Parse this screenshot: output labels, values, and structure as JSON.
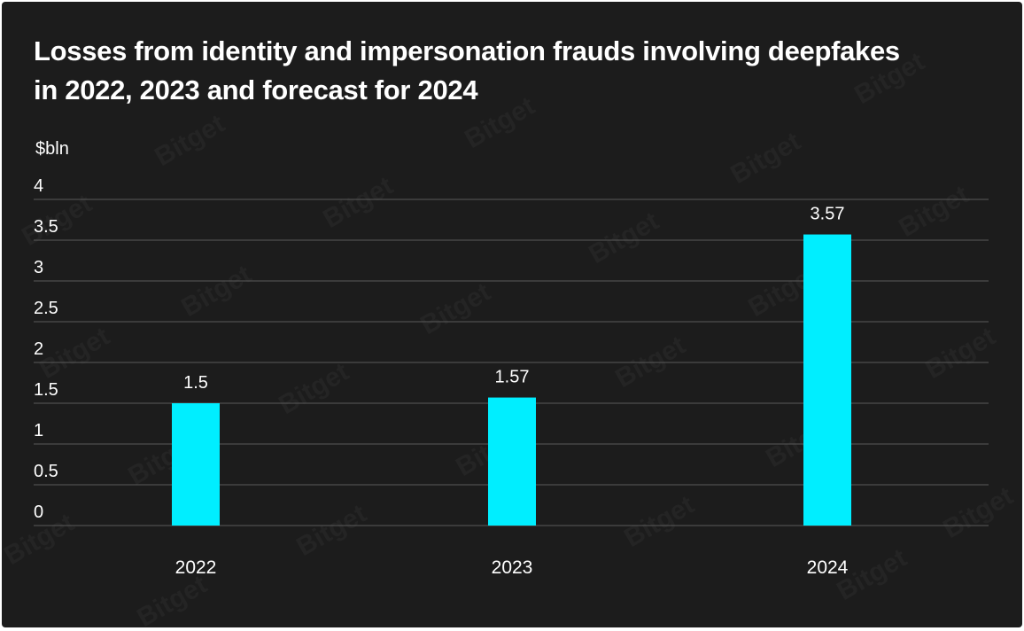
{
  "watermark_text": "Bitget",
  "chart_data": {
    "type": "bar",
    "title": "Losses from identity and impersonation frauds involving deepfakes in 2022, 2023 and forecast for 2024",
    "ylabel": "$bln",
    "xlabel": "",
    "categories": [
      "2022",
      "2023",
      "2024"
    ],
    "values": [
      1.5,
      1.57,
      3.57
    ],
    "data_labels": [
      "1.5",
      "1.57",
      "3.57"
    ],
    "yticks": [
      "0",
      "0.5",
      "1",
      "1.5",
      "2",
      "2.5",
      "3",
      "3.5",
      "4"
    ],
    "ylim": [
      0,
      4
    ],
    "grid": true,
    "legend": "none",
    "colors": {
      "bar": "#00eeff",
      "background": "#1c1c1c",
      "text": "#ffffff",
      "grid": "#5a5a5a"
    }
  }
}
